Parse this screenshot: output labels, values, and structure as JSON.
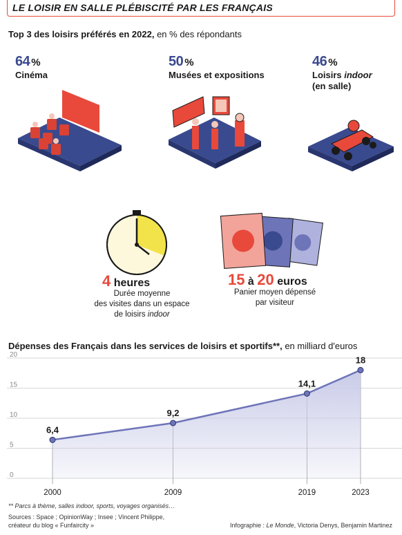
{
  "title": "LE LOISIR EN SALLE PLÉBISCITÉ PAR LES FRANÇAIS",
  "top3": {
    "heading_bold": "Top 3 des loisirs préférés en 2022,",
    "heading_rest": " en % des répondants",
    "items": [
      {
        "value": "64",
        "unit": "%",
        "label": "Cinéma"
      },
      {
        "value": "50",
        "unit": "%",
        "label": "Musées et expositions"
      },
      {
        "value": "46",
        "unit": "%",
        "label_main": "Loisirs ",
        "label_italic": "indoor",
        "label_sub": "(en salle)"
      }
    ]
  },
  "stats": [
    {
      "value": "4",
      "unit": " heures",
      "desc_line1": "Durée moyenne",
      "desc_line2": "des visites dans un espace",
      "desc_line3a": "de loisirs ",
      "desc_line3b": "indoor"
    },
    {
      "value_from": "15",
      "connector": " à ",
      "value_to": "20",
      "unit": " euros",
      "desc_line1": "Panier moyen dépensé",
      "desc_line2": "par visiteur"
    }
  ],
  "chart_heading_bold": "Dépenses des Français dans les services de loisirs et sportifs**,",
  "chart_heading_rest": " en milliard d'euros",
  "chart_data": {
    "type": "area",
    "x": [
      2000,
      2009,
      2019,
      2023
    ],
    "values": [
      6.4,
      9.2,
      14.1,
      18
    ],
    "value_labels": [
      "6,4",
      "9,2",
      "14,1",
      "18"
    ],
    "ylim": [
      0,
      20
    ],
    "yticks": [
      0,
      5,
      10,
      15,
      20
    ],
    "xticks": [
      "2000",
      "2009",
      "2019",
      "2023"
    ],
    "grid": true,
    "line_color": "#6e74b8",
    "fill_color": "#c9cbe8"
  },
  "footnote": "** Parcs à thème, salles indoor, sports, voyages organisés…",
  "sources_line1": "Sources : Space ; OpinionWay ; Insee ; Vincent Philippe,",
  "sources_line2": "créateur du blog « Funfaircity »",
  "credit_prefix": "Infographie : ",
  "credit_italic": "Le Monde",
  "credit_rest": ", Victoria Denys, Benjamin Martinez",
  "colors": {
    "accent": "#e8493b",
    "navy": "#3a4a8f",
    "purple": "#6e74b8",
    "yellow": "#f2e34a"
  }
}
